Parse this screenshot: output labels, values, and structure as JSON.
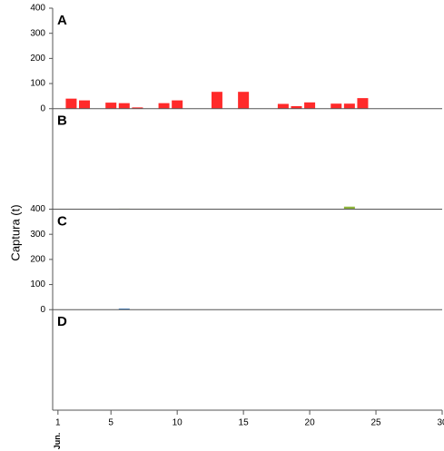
{
  "chart_data": [
    {
      "type": "bar",
      "title": "A",
      "x": [
        2,
        3,
        5,
        6,
        7,
        9,
        10,
        13,
        15,
        18,
        19,
        20,
        22,
        23,
        24
      ],
      "values": [
        40,
        33,
        24,
        22,
        5,
        22,
        33,
        67,
        67,
        19,
        10,
        25,
        20,
        20,
        42
      ],
      "color": "#ff2a2a",
      "xlim": [
        0.6,
        30
      ],
      "ylim": [
        0,
        400
      ],
      "yticks": [
        0,
        100,
        200,
        300,
        400
      ]
    },
    {
      "type": "bar",
      "title": "B",
      "ylabel": "Captura (t)",
      "x": [
        6,
        23
      ],
      "values": [
        2,
        10
      ],
      "color": "#8db33a",
      "xlim": [
        0.6,
        30
      ],
      "ylim": [
        0,
        400
      ]
    },
    {
      "type": "bar",
      "title": "C",
      "x": [
        6
      ],
      "values": [
        4
      ],
      "color": "#1f6fc0",
      "xlim": [
        0.6,
        30
      ],
      "ylim": [
        0,
        400
      ],
      "yticks": [
        0,
        100,
        200,
        300,
        400
      ]
    },
    {
      "type": "bar",
      "title": "D",
      "x": [],
      "values": [],
      "color": "#888888",
      "xlim": [
        0.6,
        30
      ],
      "ylim": [
        0,
        400
      ],
      "xticks": [
        1,
        5,
        10,
        15,
        20,
        25,
        30
      ],
      "x_annotation": "Jun."
    }
  ]
}
